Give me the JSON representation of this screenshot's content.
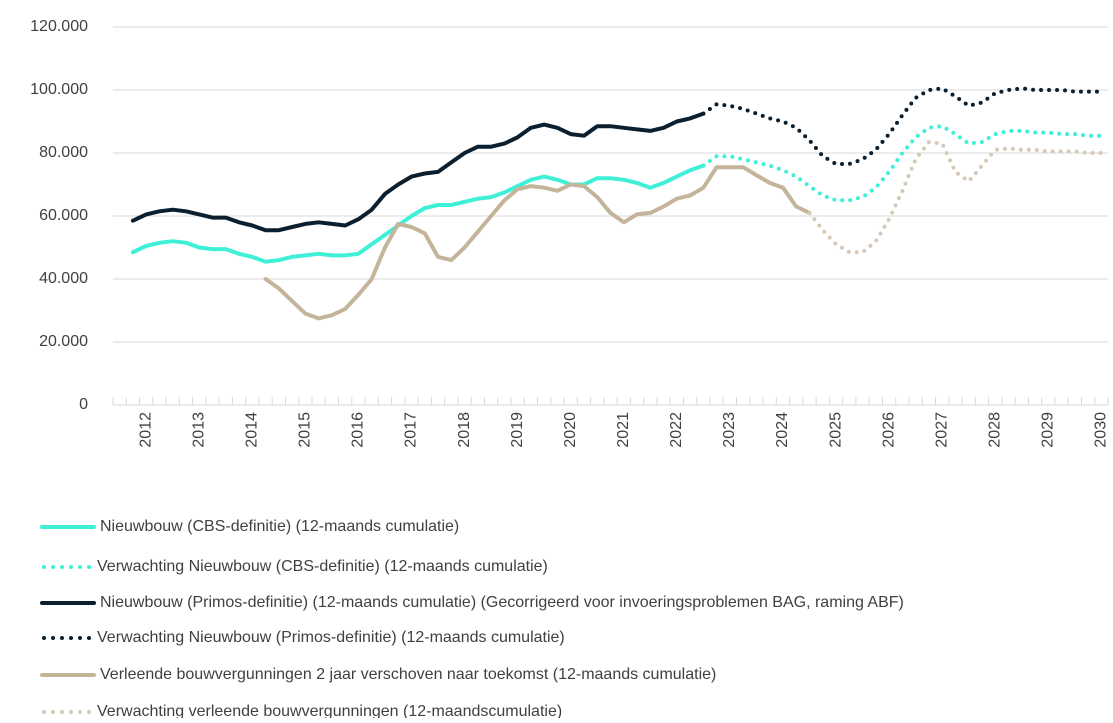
{
  "chart_data": {
    "type": "line",
    "categories": [
      null,
      null,
      "2012",
      null,
      null,
      null,
      "2013",
      null,
      null,
      null,
      "2014",
      null,
      null,
      null,
      "2015",
      null,
      null,
      null,
      "2016",
      null,
      null,
      null,
      "2017",
      null,
      null,
      null,
      "2018",
      null,
      null,
      null,
      "2019",
      null,
      null,
      null,
      "2020",
      null,
      null,
      null,
      "2021",
      null,
      null,
      null,
      "2022",
      null,
      null,
      null,
      "2023",
      null,
      null,
      null,
      "2024",
      null,
      null,
      null,
      "2025",
      null,
      null,
      null,
      "2026",
      null,
      null,
      null,
      "2027",
      null,
      null,
      null,
      "2028",
      null,
      null,
      null,
      "2029",
      null,
      null,
      null,
      "2030"
    ],
    "ylim": [
      0,
      120000
    ],
    "yticks": [
      0,
      {
        "value": 20000,
        "label": "20.000"
      },
      {
        "value": 40000,
        "label": "40.000"
      },
      {
        "value": 60000,
        "label": "60.000"
      },
      {
        "value": 80000,
        "label": "80.000"
      },
      {
        "value": 100000,
        "label": "100.000"
      },
      {
        "value": 120000,
        "label": "120.000"
      }
    ],
    "grid": true,
    "legend": "bottom",
    "series": [
      {
        "name": "Nieuwbouw (CBS-definitie) (12-maands cumulatie)",
        "color": "#3ff0d8",
        "style": "solid",
        "values": [
          null,
          48500,
          50500,
          51500,
          52000,
          51500,
          50000,
          49500,
          49500,
          48000,
          47000,
          45500,
          46000,
          47000,
          47500,
          48000,
          47500,
          47500,
          48000,
          51000,
          54000,
          57000,
          60000,
          62500,
          63500,
          63500,
          64500,
          65500,
          66000,
          67500,
          69500,
          71500,
          72500,
          71500,
          70000,
          70000,
          72000,
          72000,
          71500,
          70500,
          69000,
          70500,
          72500,
          74500,
          76000,
          null,
          null,
          null,
          null,
          null,
          null,
          null,
          null,
          null,
          null,
          null,
          null,
          null,
          null,
          null,
          null,
          null,
          null,
          null,
          null,
          null,
          null,
          null,
          null,
          null,
          null,
          null,
          null,
          null,
          null
        ]
      },
      {
        "name": "Verwachting Nieuwbouw (CBS-definitie) (12-maands cumulatie)",
        "color": "#3ff0d8",
        "style": "dotted",
        "values": [
          null,
          null,
          null,
          null,
          null,
          null,
          null,
          null,
          null,
          null,
          null,
          null,
          null,
          null,
          null,
          null,
          null,
          null,
          null,
          null,
          null,
          null,
          null,
          null,
          null,
          null,
          null,
          null,
          null,
          null,
          null,
          null,
          null,
          null,
          null,
          null,
          null,
          null,
          null,
          null,
          null,
          null,
          null,
          null,
          76000,
          79000,
          79000,
          78000,
          77000,
          76000,
          74500,
          72500,
          69500,
          66500,
          65000,
          65000,
          66000,
          69000,
          74000,
          80000,
          85000,
          88000,
          88500,
          86000,
          83000,
          83500,
          86000,
          87000,
          87000,
          86500,
          86500,
          86000,
          86000,
          85500,
          85500
        ]
      },
      {
        "name": "Nieuwbouw (Primos-definitie) (12-maands cumulatie) (Gecorrigeerd voor invoeringsproblemen BAG, raming ABF)",
        "color": "#0b1f2e",
        "style": "solid",
        "values": [
          null,
          58500,
          60500,
          61500,
          62000,
          61500,
          60500,
          59500,
          59500,
          58000,
          57000,
          55500,
          55500,
          56500,
          57500,
          58000,
          57500,
          57000,
          59000,
          62000,
          67000,
          70000,
          72500,
          73500,
          74000,
          77000,
          80000,
          82000,
          82000,
          83000,
          85000,
          88000,
          89000,
          88000,
          86000,
          85500,
          88500,
          88500,
          88000,
          87500,
          87000,
          88000,
          90000,
          91000,
          92500,
          null,
          null,
          null,
          null,
          null,
          null,
          null,
          null,
          null,
          null,
          null,
          null,
          null,
          null,
          null,
          null,
          null,
          null,
          null,
          null,
          null,
          null,
          null,
          null,
          null,
          null,
          null,
          null,
          null,
          null
        ]
      },
      {
        "name": "Verwachting Nieuwbouw (Primos-definitie) (12-maands cumulatie)",
        "color": "#0b1f2e",
        "style": "dotted",
        "values": [
          null,
          null,
          null,
          null,
          null,
          null,
          null,
          null,
          null,
          null,
          null,
          null,
          null,
          null,
          null,
          null,
          null,
          null,
          null,
          null,
          null,
          null,
          null,
          null,
          null,
          null,
          null,
          null,
          null,
          null,
          null,
          null,
          null,
          null,
          null,
          null,
          null,
          null,
          null,
          null,
          null,
          null,
          null,
          null,
          92500,
          95500,
          95000,
          94000,
          92500,
          91000,
          90000,
          88000,
          84000,
          79000,
          76500,
          76500,
          78000,
          81000,
          86000,
          92000,
          97500,
          100000,
          100500,
          98000,
          95000,
          96000,
          99000,
          100000,
          100500,
          100000,
          100000,
          100000,
          99500,
          99500,
          99500
        ]
      },
      {
        "name": "Verleende bouwvergunningen 2 jaar verschoven naar toekomst (12-maands cumulatie)",
        "color": "#c4b59a",
        "style": "solid",
        "values": [
          null,
          null,
          null,
          null,
          null,
          null,
          null,
          null,
          null,
          null,
          null,
          40000,
          37000,
          33000,
          29000,
          27500,
          28500,
          30500,
          35000,
          40000,
          50000,
          57500,
          56500,
          54500,
          47000,
          46000,
          50000,
          55000,
          60000,
          65000,
          68500,
          69500,
          69000,
          68000,
          70000,
          69500,
          66000,
          61000,
          58000,
          60500,
          61000,
          63000,
          65500,
          66500,
          69000,
          75500,
          75500,
          75500,
          73000,
          70500,
          69000,
          63000,
          61000,
          null,
          null,
          null,
          null,
          null,
          null,
          null,
          null,
          null,
          null,
          null,
          null,
          null,
          null,
          null,
          null,
          null,
          null,
          null,
          null,
          null,
          null
        ]
      },
      {
        "name": "Verwachting verleende bouwvergunningen (12-maandscumulatie)",
        "color": "#d6cab6",
        "style": "dotted",
        "values": [
          null,
          null,
          null,
          null,
          null,
          null,
          null,
          null,
          null,
          null,
          null,
          null,
          null,
          null,
          null,
          null,
          null,
          null,
          null,
          null,
          null,
          null,
          null,
          null,
          null,
          null,
          null,
          null,
          null,
          null,
          null,
          null,
          null,
          null,
          null,
          null,
          null,
          null,
          null,
          null,
          null,
          null,
          null,
          null,
          null,
          null,
          null,
          null,
          null,
          null,
          null,
          null,
          61000,
          55500,
          51000,
          48500,
          48500,
          52000,
          59000,
          68000,
          78000,
          83500,
          83000,
          74000,
          71000,
          76000,
          81000,
          81500,
          81000,
          81000,
          80500,
          80500,
          80500,
          80000,
          80000
        ]
      }
    ]
  }
}
